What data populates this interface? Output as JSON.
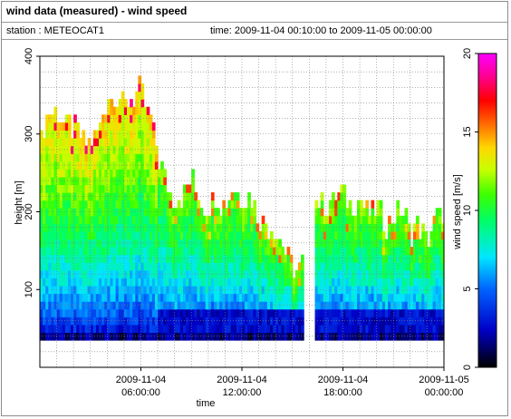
{
  "header": {
    "title": "wind data (measured) - wind speed",
    "station": "station : METEOCAT1",
    "time_range": "time: 2009-11-04 00:10:00 to 2009-11-05 00:00:00"
  },
  "chart_data": {
    "type": "heatmap",
    "xlabel": "time",
    "ylabel": "height [m]",
    "colorbar_label": "wind speed [m/s]",
    "x_range_hours": [
      0,
      24
    ],
    "ylim": [
      0,
      400
    ],
    "clim": [
      0,
      20
    ],
    "x_ticks": [
      {
        "hour": 6,
        "line1": "2009-11-04",
        "line2": "06:00:00"
      },
      {
        "hour": 12,
        "line1": "2009-11-04",
        "line2": "12:00:00"
      },
      {
        "hour": 18,
        "line1": "2009-11-04",
        "line2": "18:00:00"
      },
      {
        "hour": 24,
        "line1": "2009-11-05",
        "line2": "00:00:00"
      }
    ],
    "y_ticks": [
      100,
      200,
      300,
      400
    ],
    "colorbar_ticks": [
      0,
      5,
      10,
      15,
      20
    ],
    "grid": true,
    "data_height_bottom_m": 35,
    "gap_hours": [
      15.5,
      16.3
    ],
    "top_height_profile": [
      [
        0.0,
        280
      ],
      [
        0.5,
        330
      ],
      [
        1.0,
        320
      ],
      [
        1.5,
        310
      ],
      [
        2.0,
        300
      ],
      [
        2.5,
        290
      ],
      [
        3.0,
        280
      ],
      [
        3.5,
        300
      ],
      [
        4.0,
        340
      ],
      [
        4.5,
        350
      ],
      [
        5.0,
        330
      ],
      [
        5.5,
        340
      ],
      [
        6.0,
        350
      ],
      [
        6.5,
        320
      ],
      [
        7.0,
        270
      ],
      [
        7.5,
        230
      ],
      [
        8.0,
        210
      ],
      [
        8.5,
        220
      ],
      [
        9.0,
        240
      ],
      [
        9.5,
        210
      ],
      [
        10.0,
        200
      ],
      [
        10.5,
        215
      ],
      [
        11.0,
        200
      ],
      [
        11.5,
        230
      ],
      [
        12.0,
        210
      ],
      [
        12.5,
        220
      ],
      [
        13.0,
        190
      ],
      [
        13.5,
        180
      ],
      [
        14.0,
        170
      ],
      [
        14.5,
        150
      ],
      [
        15.0,
        120
      ],
      [
        15.5,
        120
      ],
      [
        16.3,
        210
      ],
      [
        16.8,
        200
      ],
      [
        17.5,
        210
      ],
      [
        18.0,
        220
      ],
      [
        18.5,
        200
      ],
      [
        19.0,
        210
      ],
      [
        19.5,
        195
      ],
      [
        20.0,
        200
      ],
      [
        20.5,
        180
      ],
      [
        21.0,
        190
      ],
      [
        21.5,
        200
      ],
      [
        22.0,
        170
      ],
      [
        22.5,
        180
      ],
      [
        23.0,
        160
      ],
      [
        23.5,
        190
      ],
      [
        24.0,
        190
      ]
    ]
  }
}
